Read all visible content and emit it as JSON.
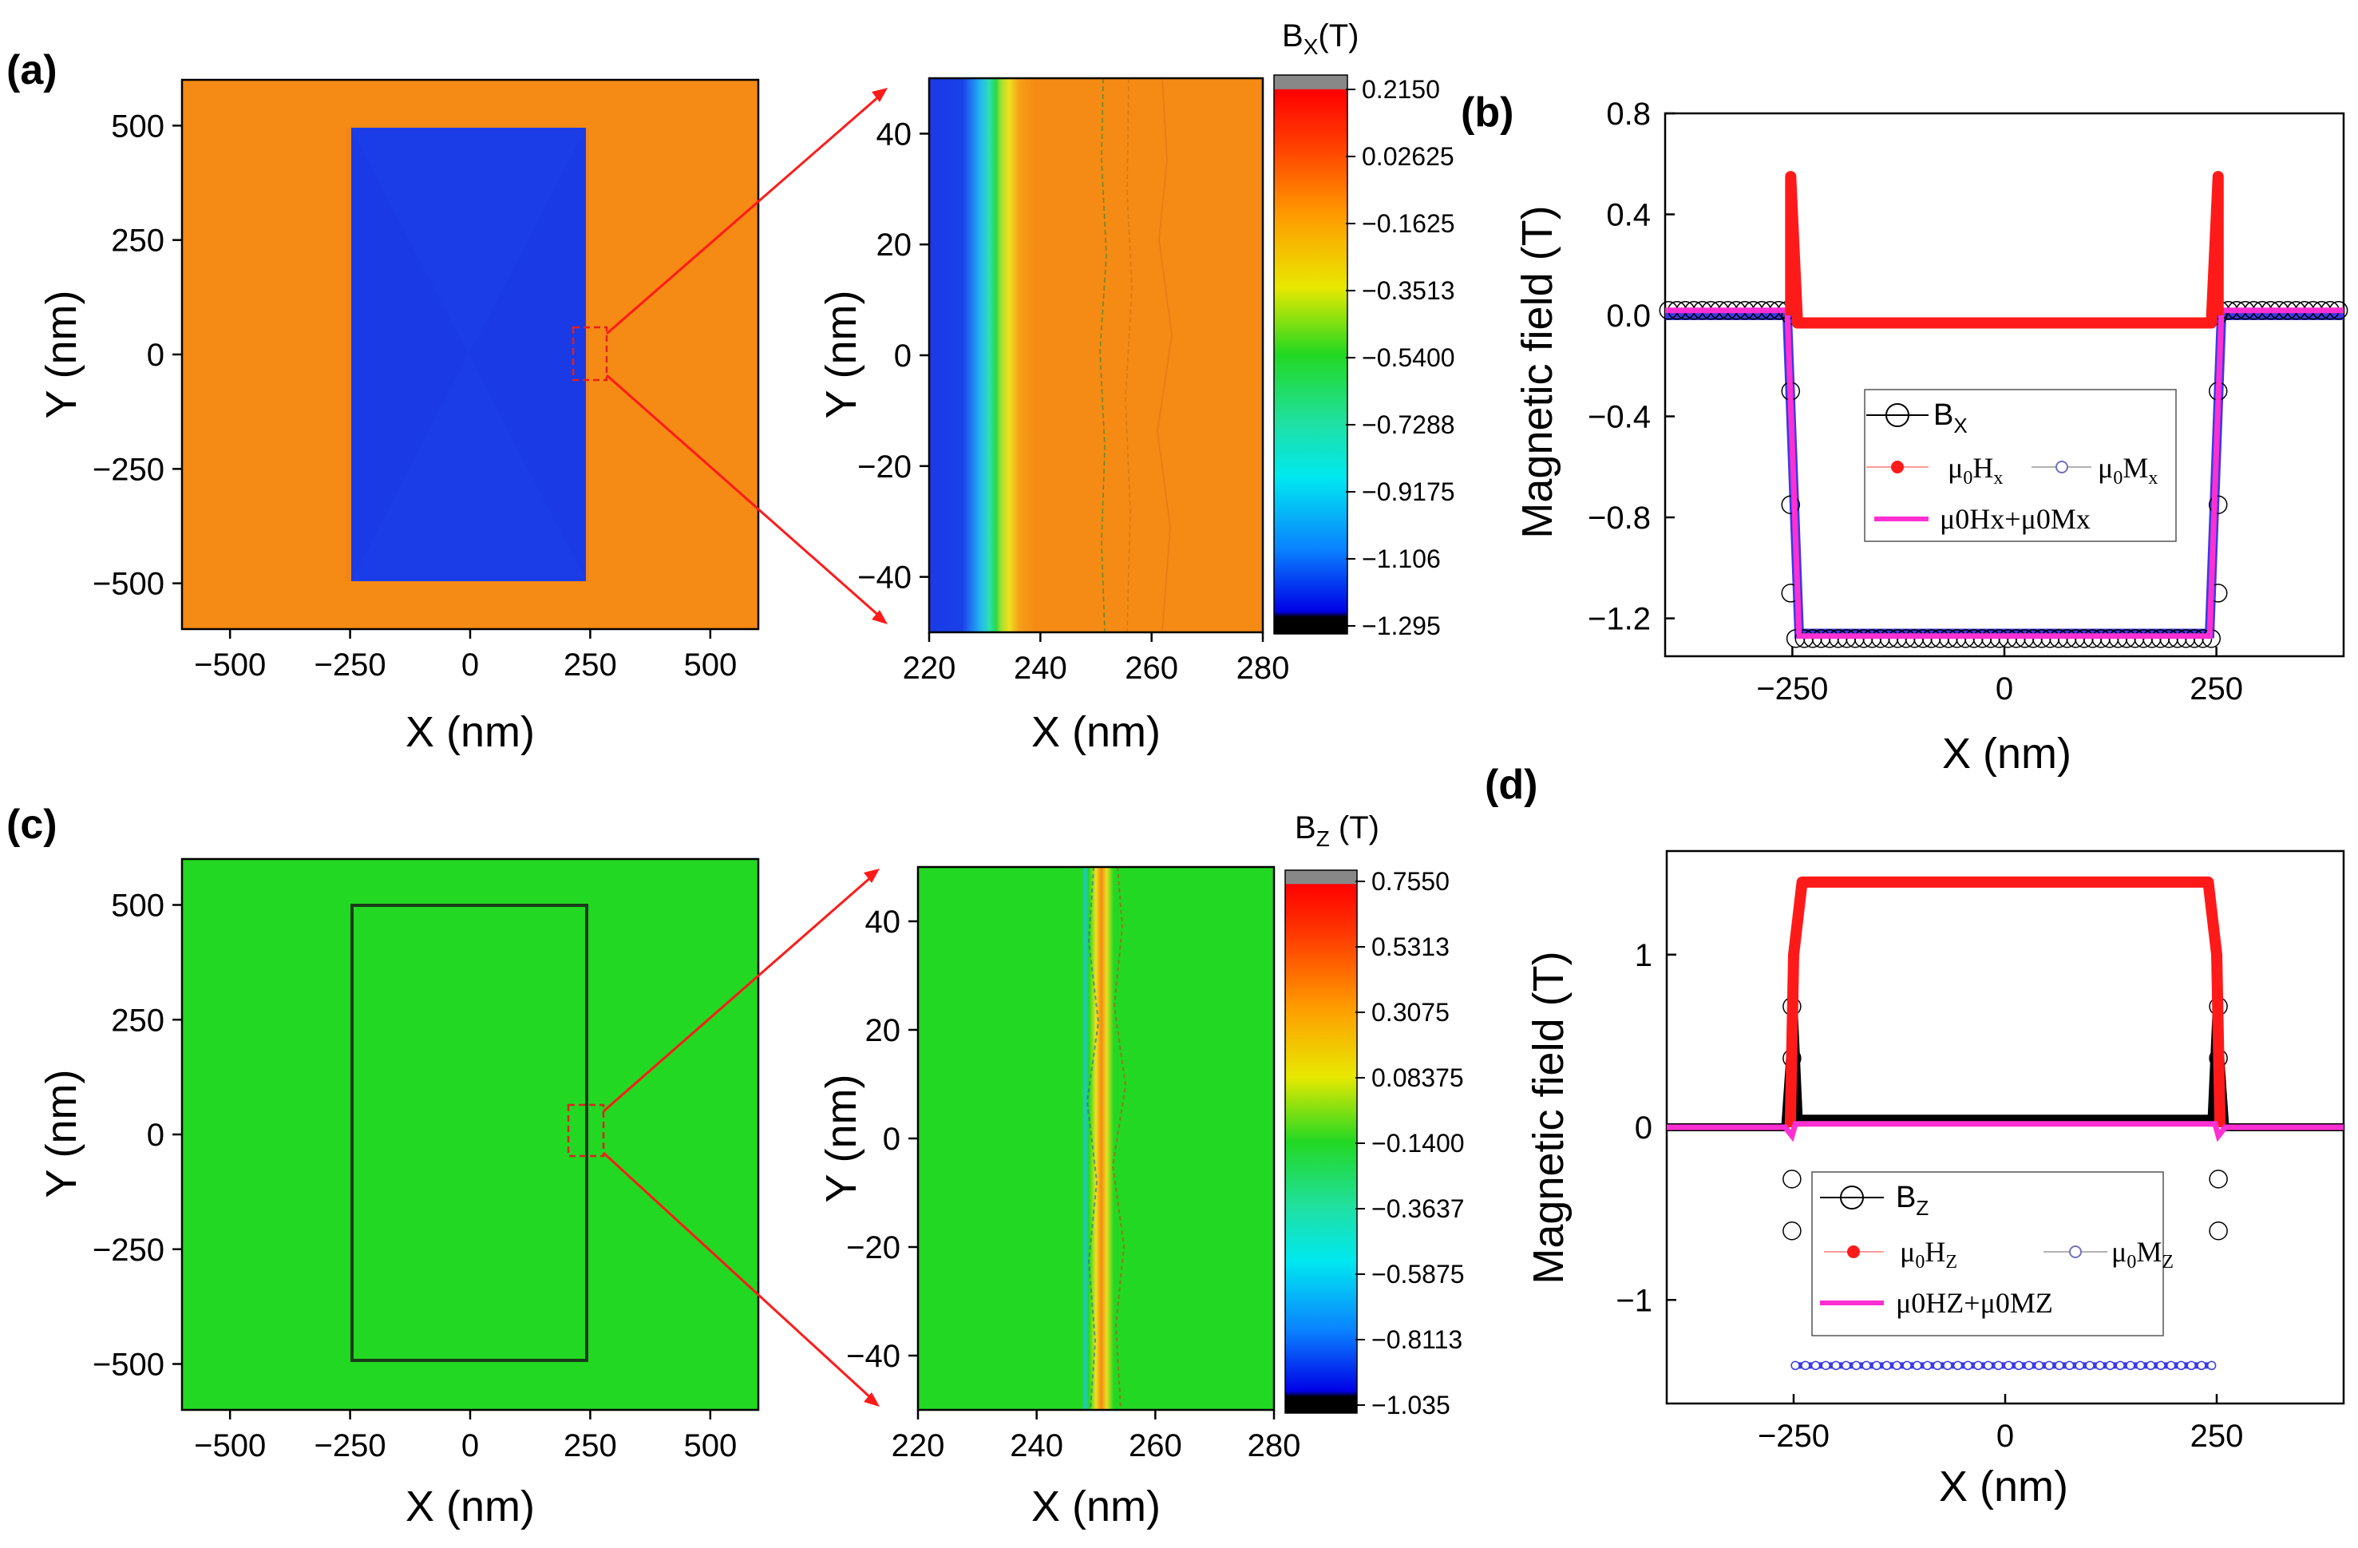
{
  "colors": {
    "orange_bg": "#f58a14",
    "blue_inner": "#1a3ae6",
    "green_bg": "#22d822",
    "red": "#ff1a1a",
    "magenta": "#ff2fd2",
    "blue_points": "#3a3ae6",
    "black": "#000000"
  },
  "chart_data": [
    {
      "panel": "(a)",
      "type": "heatmap",
      "title": "",
      "xlabel": "X (nm)",
      "ylabel": "Y (nm)",
      "xlim": [
        -600,
        600
      ],
      "ylim": [
        -600,
        600
      ],
      "xticks": [
        "-500",
        "-250",
        "0",
        "250",
        "500"
      ],
      "yticks": [
        "500",
        "250",
        "0",
        "-250",
        "-500"
      ],
      "description_regions": {
        "rect_x": [
          -250,
          250
        ],
        "rect_y": [
          -500,
          500
        ]
      }
    },
    {
      "panel": "(a-zoom)",
      "type": "heatmap",
      "xlabel": "X (nm)",
      "ylabel": "Y (nm)",
      "xlim": [
        220,
        280
      ],
      "ylim": [
        -50,
        50
      ],
      "xticks": [
        "220",
        "240",
        "260",
        "280"
      ],
      "yticks": [
        "40",
        "20",
        "0",
        "-20",
        "-40"
      ],
      "colorbar_title": "B",
      "colorbar_sub": "X",
      "colorbar_unit": "(T)",
      "colorbar_values": [
        "0.2150",
        "0.02625",
        "-0.1625",
        "-0.3513",
        "-0.5400",
        "-0.7288",
        "-0.9175",
        "-1.106",
        "-1.295"
      ]
    },
    {
      "panel": "(b)",
      "type": "line",
      "xlabel": "X (nm)",
      "ylabel": "Magnetic field (T)",
      "xlim": [
        -400,
        400
      ],
      "ylim": [
        -1.35,
        0.8
      ],
      "xticks": [
        "-250",
        "0",
        "250"
      ],
      "yticks": [
        "0.8",
        "0.4",
        "0.0",
        "-0.4",
        "-0.8",
        "-1.2"
      ],
      "xtick_values": [
        -250,
        0,
        250
      ],
      "ytick_values": [
        0.8,
        0.4,
        0.0,
        -0.4,
        -0.8,
        -1.2
      ],
      "series": [
        {
          "name": "Bx",
          "outside": 0.02,
          "inside": -1.28,
          "spike": 0
        },
        {
          "name": "μ0Hx",
          "outside": 0.0,
          "inside": -0.02,
          "spike": 0.55
        },
        {
          "name": "μ0Mx",
          "outside": 0.0,
          "inside": -1.26,
          "spike": 0
        },
        {
          "name": "μ0Hx+μ0Mx",
          "outside": 0.02,
          "inside": -1.27,
          "spike": 0
        }
      ],
      "legend": {
        "bx_main": "B",
        "bx_sub": "X",
        "hx_main": "μ",
        "hx_mid": "0",
        "hx_end": "H",
        "hx_sub": "x",
        "mx_main": "μ",
        "mx_mid": "0",
        "mx_end": "M",
        "mx_sub": "x",
        "sum_text": "μ0Hx+μ0Mx"
      }
    },
    {
      "panel": "(c)",
      "type": "heatmap",
      "xlabel": "X (nm)",
      "ylabel": "Y (nm)",
      "xlim": [
        -600,
        600
      ],
      "ylim": [
        -600,
        600
      ],
      "xticks": [
        "-500",
        "-250",
        "0",
        "250",
        "500"
      ],
      "yticks": [
        "500",
        "250",
        "0",
        "-250",
        "-500"
      ]
    },
    {
      "panel": "(c-zoom)",
      "type": "heatmap",
      "xlabel": "X (nm)",
      "ylabel": "Y (nm)",
      "xlim": [
        220,
        280
      ],
      "ylim": [
        -50,
        50
      ],
      "xticks": [
        "220",
        "240",
        "260",
        "280"
      ],
      "yticks": [
        "40",
        "20",
        "0",
        "-20",
        "-40"
      ],
      "colorbar_title": "B",
      "colorbar_sub": "Z",
      "colorbar_unit": " (T)",
      "colorbar_values": [
        "0.7550",
        "0.5313",
        "0.3075",
        "0.08375",
        "-0.1400",
        "-0.3637",
        "-0.5875",
        "-0.8113",
        "-1.035"
      ]
    },
    {
      "panel": "(d)",
      "type": "line",
      "xlabel": "X (nm)",
      "ylabel": "Magnetic field (T)",
      "xlim": [
        -400,
        400
      ],
      "ylim": [
        -1.6,
        1.6
      ],
      "xticks": [
        "-250",
        "0",
        "250"
      ],
      "yticks": [
        "1",
        "0",
        "-1"
      ],
      "xtick_values": [
        -250,
        0,
        250
      ],
      "ytick_values": [
        1,
        0,
        -1
      ],
      "series": [
        {
          "name": "Bz",
          "outside": 0.0,
          "inside": 0.05,
          "spike": 0.7
        },
        {
          "name": "μ0Hz",
          "outside": 0.0,
          "inside": 1.42,
          "spike": 0
        },
        {
          "name": "μ0Mz",
          "outside": 0.0,
          "inside": -1.38,
          "spike": 0
        },
        {
          "name": "μ0Hz+μ0Mz",
          "outside": 0.0,
          "inside": 0.02,
          "spike": 0
        }
      ],
      "legend": {
        "bz_main": "B",
        "bz_sub": "Z",
        "hz_main": "μ",
        "hz_mid": "0",
        "hz_end": "H",
        "hz_sub": "Z",
        "mz_main": "μ",
        "mz_mid": "0",
        "mz_end": "M",
        "mz_sub": "Z",
        "sum_text": "μ0HZ+μ0MZ"
      }
    }
  ]
}
